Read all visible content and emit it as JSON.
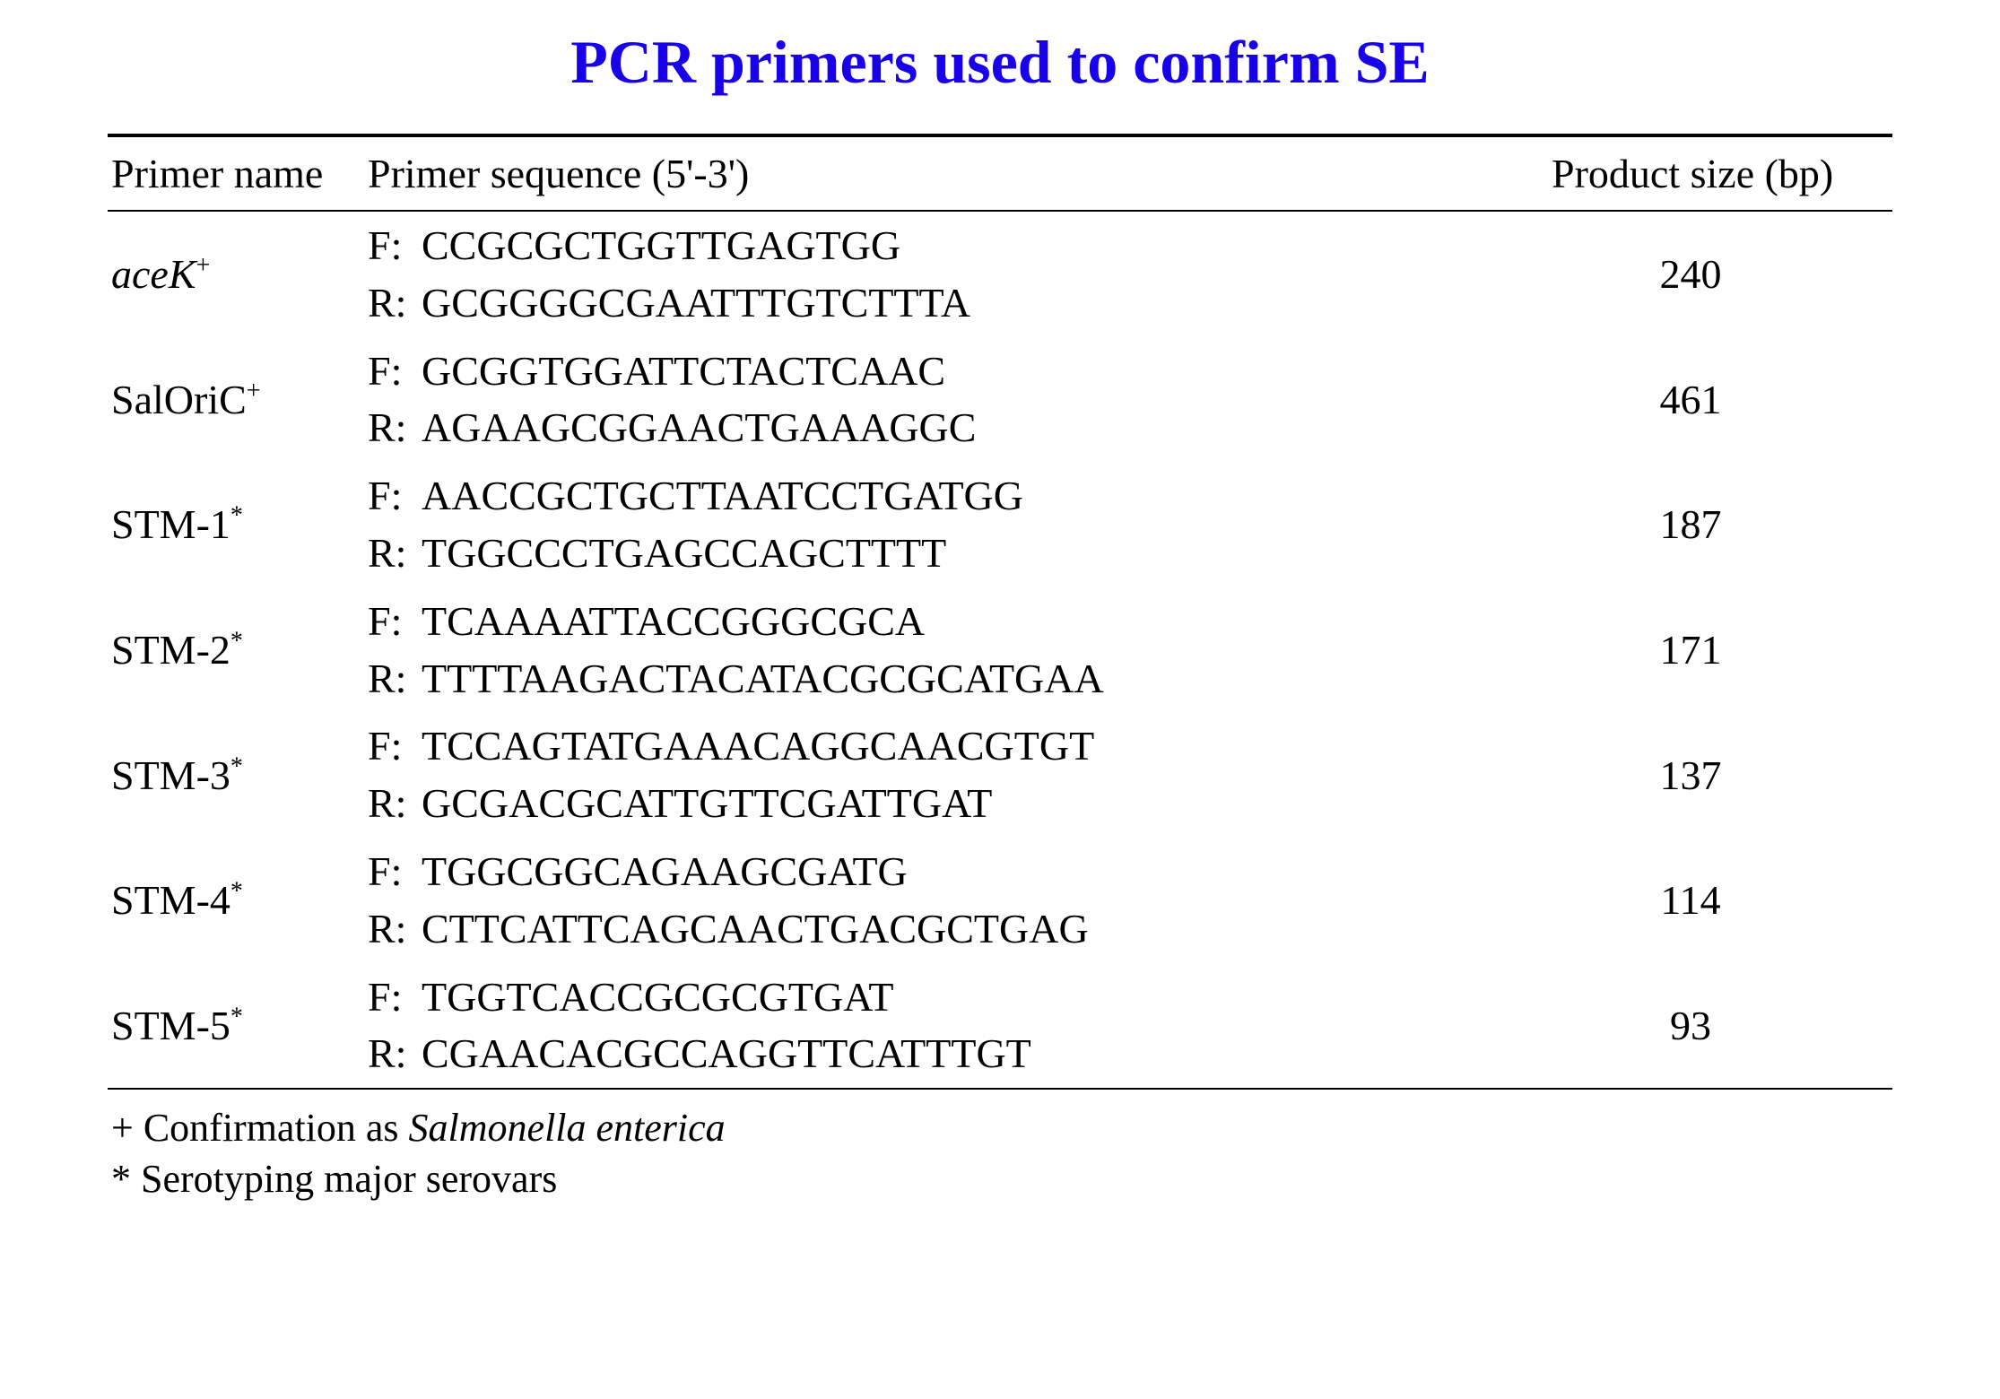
{
  "title": "PCR primers used to confirm SE",
  "title_color": "#1800eb",
  "headers": {
    "primer_name": "Primer name",
    "sequence": "Primer sequence (5'-3')",
    "product_size": "Product size (bp)"
  },
  "primers": [
    {
      "name": "aceK",
      "name_italic": true,
      "superscript": "+",
      "forward": "CCGCGCTGGTTGAGTGG",
      "reverse": "GCGGGGCGAATTTGTCTTTA",
      "product_size": "240"
    },
    {
      "name": "SalOriC",
      "name_italic": false,
      "superscript": "+",
      "forward": "GCGGTGGATTCTACTCAAC",
      "reverse": "AGAAGCGGAACTGAAAGGC",
      "product_size": "461"
    },
    {
      "name": "STM-1",
      "name_italic": false,
      "superscript": "*",
      "forward": "AACCGCTGCTTAATCCTGATGG",
      "reverse": "TGGCCCTGAGCCAGCTTTT",
      "product_size": "187"
    },
    {
      "name": "STM-2",
      "name_italic": false,
      "superscript": "*",
      "forward": "TCAAAATTACCGGGCGCA",
      "reverse": "TTTTAAGACTACATACGCGCATGAA",
      "product_size": "171"
    },
    {
      "name": "STM-3",
      "name_italic": false,
      "superscript": "*",
      "forward": "TCCAGTATGAAACAGGCAACGTGT",
      "reverse": "GCGACGCATTGTTCGATTGAT",
      "product_size": "137"
    },
    {
      "name": "STM-4",
      "name_italic": false,
      "superscript": "*",
      "forward": "TGGCGGCAGAAGCGATG",
      "reverse": "CTTCATTCAGCAACTGACGCTGAG",
      "product_size": "114"
    },
    {
      "name": "STM-5",
      "name_italic": false,
      "superscript": "*",
      "forward": "TGGTCACCGCGCGTGAT",
      "reverse": "CGAACACGCCAGGTTCATTTGT",
      "product_size": "93"
    }
  ],
  "sequence_labels": {
    "forward": "F:",
    "reverse": "R:"
  },
  "footnotes": {
    "plus": "+ Confirmation as ",
    "plus_italic": "Salmonella enterica",
    "asterisk": "* Serotyping major serovars"
  },
  "styling": {
    "background_color": "#ffffff",
    "text_color": "#000000",
    "title_fontsize": 68,
    "body_fontsize": 46,
    "footnote_fontsize": 44,
    "border_top_width": 4,
    "border_width": 2,
    "font_family": "Times New Roman"
  }
}
